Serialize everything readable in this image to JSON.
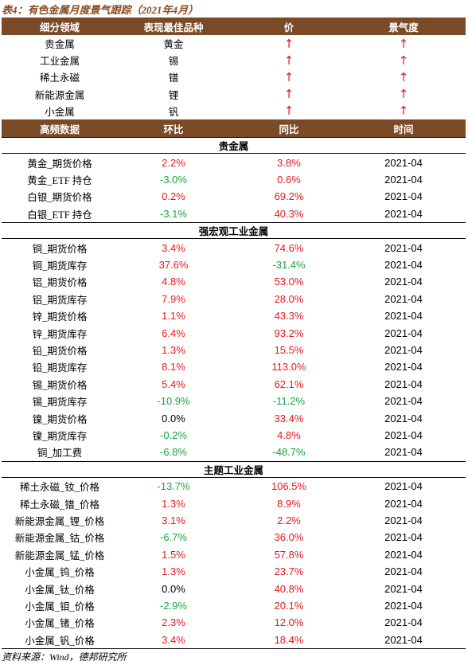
{
  "title": "表4：有色金属月度景气跟踪（2021年4月）",
  "header1": [
    "细分领域",
    "表现最佳品种",
    "价",
    "景气度"
  ],
  "rows1": [
    [
      "贵金属",
      "黄金",
      "↑",
      "↑"
    ],
    [
      "工业金属",
      "锡",
      "↑",
      "↑"
    ],
    [
      "稀土永磁",
      "镨",
      "↑",
      "↑"
    ],
    [
      "新能源金属",
      "锂",
      "↑",
      "↑"
    ],
    [
      "小金属",
      "钒",
      "↑",
      "↑"
    ]
  ],
  "header2": [
    "高频数据",
    "环比",
    "同比",
    "时间"
  ],
  "sections": [
    {
      "name": "贵金属",
      "rows": [
        [
          "黄金_期货价格",
          "2.2%",
          "3.8%",
          "2021-04"
        ],
        [
          "黄金_ETF 持仓",
          "-3.0%",
          "0.6%",
          "2021-04"
        ],
        [
          "白银_期货价格",
          "0.2%",
          "69.2%",
          "2021-04"
        ],
        [
          "白银_ETF 持仓",
          "-3.1%",
          "40.3%",
          "2021-04"
        ]
      ]
    },
    {
      "name": "强宏观工业金属",
      "rows": [
        [
          "铜_期货价格",
          "3.4%",
          "74.6%",
          "2021-04"
        ],
        [
          "铜_期货库存",
          "37.6%",
          "-31.4%",
          "2021-04"
        ],
        [
          "铝_期货价格",
          "4.8%",
          "53.0%",
          "2021-04"
        ],
        [
          "铝_期货库存",
          "7.9%",
          "28.0%",
          "2021-04"
        ],
        [
          "锌_期货价格",
          "1.1%",
          "43.3%",
          "2021-04"
        ],
        [
          "锌_期货库存",
          "6.4%",
          "93.2%",
          "2021-04"
        ],
        [
          "铅_期货价格",
          "1.3%",
          "15.5%",
          "2021-04"
        ],
        [
          "铅_期货库存",
          "8.1%",
          "113.0%",
          "2021-04"
        ],
        [
          "锡_期货价格",
          "5.4%",
          "62.1%",
          "2021-04"
        ],
        [
          "锡_期货库存",
          "-10.9%",
          "-11.2%",
          "2021-04"
        ],
        [
          "镍_期货价格",
          "0.0%",
          "33.4%",
          "2021-04"
        ],
        [
          "镍_期货库存",
          "-0.2%",
          "4.8%",
          "2021-04"
        ],
        [
          "铜_加工费",
          "-6.8%",
          "-48.7%",
          "2021-04"
        ]
      ]
    },
    {
      "name": "主题工业金属",
      "rows": [
        [
          "稀土永磁_钕_价格",
          "-13.7%",
          "106.5%",
          "2021-04"
        ],
        [
          "稀土永磁_镨_价格",
          "1.3%",
          "8.9%",
          "2021-04"
        ],
        [
          "新能源金属_锂_价格",
          "3.1%",
          "2.2%",
          "2021-04"
        ],
        [
          "新能源金属_钴_价格",
          "-6.7%",
          "36.0%",
          "2021-04"
        ],
        [
          "新能源金属_锰_价格",
          "1.5%",
          "57.8%",
          "2021-04"
        ],
        [
          "小金属_钨_价格",
          "1.3%",
          "23.7%",
          "2021-04"
        ],
        [
          "小金属_钛_价格",
          "0.0%",
          "40.8%",
          "2021-04"
        ],
        [
          "小金属_钼_价格",
          "-2.9%",
          "20.1%",
          "2021-04"
        ],
        [
          "小金属_锗_价格",
          "2.3%",
          "12.0%",
          "2021-04"
        ],
        [
          "小金属_钒_价格",
          "3.4%",
          "18.4%",
          "2021-04"
        ]
      ]
    }
  ],
  "source": "资料来源：Wind，德邦研究所"
}
